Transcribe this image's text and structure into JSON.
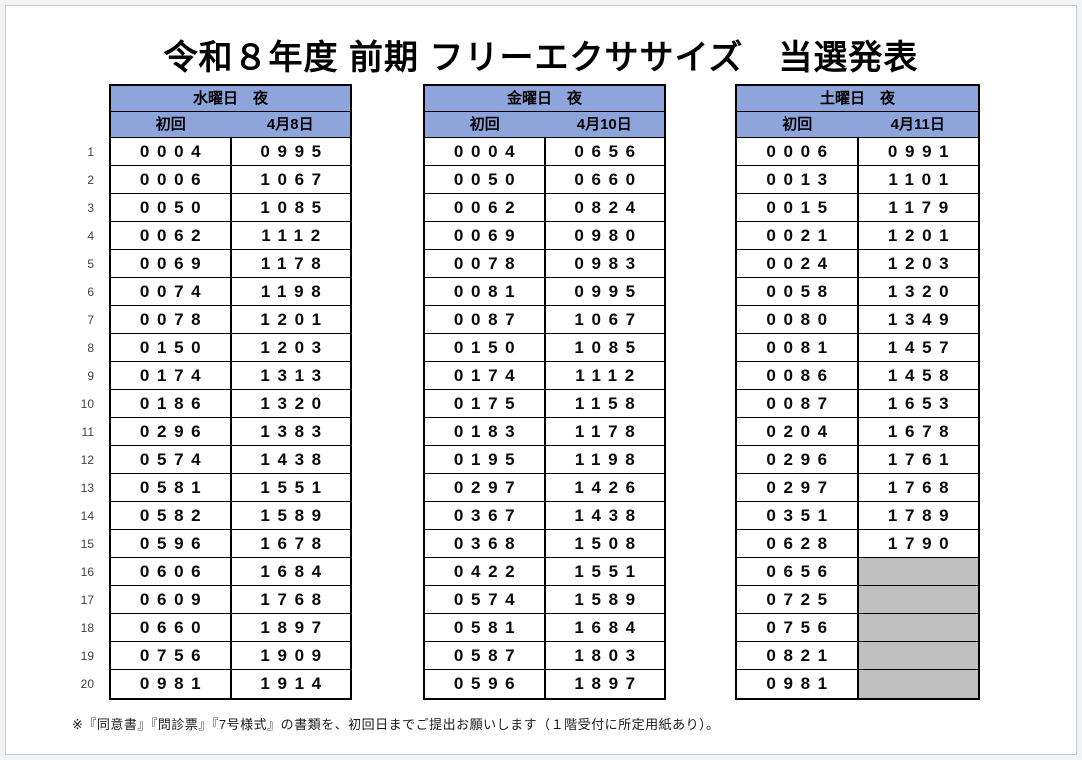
{
  "page": {
    "title": "令和８年度 前期 フリーエクササイズ　当選発表",
    "note": "※『同意書』『問診票』『7号様式』の書類を、初回日までご提出お願いします（１階受付に所定用紙あり）。"
  },
  "colors": {
    "header_bg": "#8EA5DB",
    "empty_cell_bg": "#BFBFBF",
    "border": "#000000"
  },
  "row_numbers": [
    "1",
    "2",
    "3",
    "4",
    "5",
    "6",
    "7",
    "8",
    "9",
    "10",
    "11",
    "12",
    "13",
    "14",
    "15",
    "16",
    "17",
    "18",
    "19",
    "20"
  ],
  "tables": [
    {
      "id": "wednesday-night",
      "day_header": "水曜日　夜",
      "first_session_label": "初回",
      "date_label": "4月8日",
      "rows": [
        [
          "0004",
          "0995"
        ],
        [
          "0006",
          "1067"
        ],
        [
          "0050",
          "1085"
        ],
        [
          "0062",
          "1112"
        ],
        [
          "0069",
          "1178"
        ],
        [
          "0074",
          "1198"
        ],
        [
          "0078",
          "1201"
        ],
        [
          "0150",
          "1203"
        ],
        [
          "0174",
          "1313"
        ],
        [
          "0186",
          "1320"
        ],
        [
          "0296",
          "1383"
        ],
        [
          "0574",
          "1438"
        ],
        [
          "0581",
          "1551"
        ],
        [
          "0582",
          "1589"
        ],
        [
          "0596",
          "1678"
        ],
        [
          "0606",
          "1684"
        ],
        [
          "0609",
          "1768"
        ],
        [
          "0660",
          "1897"
        ],
        [
          "0756",
          "1909"
        ],
        [
          "0981",
          "1914"
        ]
      ]
    },
    {
      "id": "friday-night",
      "day_header": "金曜日　夜",
      "first_session_label": "初回",
      "date_label": "4月10日",
      "rows": [
        [
          "0004",
          "0656"
        ],
        [
          "0050",
          "0660"
        ],
        [
          "0062",
          "0824"
        ],
        [
          "0069",
          "0980"
        ],
        [
          "0078",
          "0983"
        ],
        [
          "0081",
          "0995"
        ],
        [
          "0087",
          "1067"
        ],
        [
          "0150",
          "1085"
        ],
        [
          "0174",
          "1112"
        ],
        [
          "0175",
          "1158"
        ],
        [
          "0183",
          "1178"
        ],
        [
          "0195",
          "1198"
        ],
        [
          "0297",
          "1426"
        ],
        [
          "0367",
          "1438"
        ],
        [
          "0368",
          "1508"
        ],
        [
          "0422",
          "1551"
        ],
        [
          "0574",
          "1589"
        ],
        [
          "0581",
          "1684"
        ],
        [
          "0587",
          "1803"
        ],
        [
          "0596",
          "1897"
        ]
      ]
    },
    {
      "id": "saturday-night",
      "day_header": "土曜日　夜",
      "first_session_label": "初回",
      "date_label": "4月11日",
      "rows": [
        [
          "0006",
          "0991"
        ],
        [
          "0013",
          "1101"
        ],
        [
          "0015",
          "1179"
        ],
        [
          "0021",
          "1201"
        ],
        [
          "0024",
          "1203"
        ],
        [
          "0058",
          "1320"
        ],
        [
          "0080",
          "1349"
        ],
        [
          "0081",
          "1457"
        ],
        [
          "0086",
          "1458"
        ],
        [
          "0087",
          "1653"
        ],
        [
          "0204",
          "1678"
        ],
        [
          "0296",
          "1761"
        ],
        [
          "0297",
          "1768"
        ],
        [
          "0351",
          "1789"
        ],
        [
          "0628",
          "1790"
        ],
        [
          "0656",
          null
        ],
        [
          "0725",
          null
        ],
        [
          "0756",
          null
        ],
        [
          "0821",
          null
        ],
        [
          "0981",
          null
        ]
      ]
    }
  ]
}
